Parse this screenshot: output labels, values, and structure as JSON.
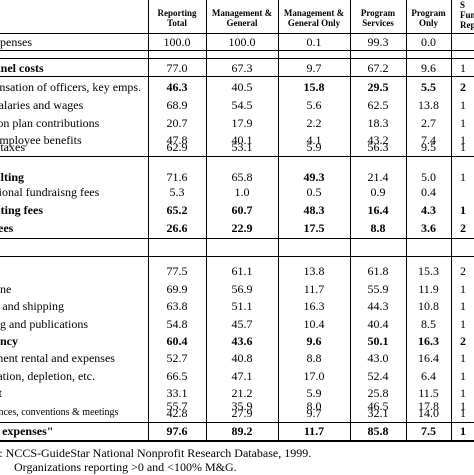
{
  "header": {
    "col1": [
      "Reporting",
      "Total"
    ],
    "col2": [
      "Management &",
      "General"
    ],
    "col3": [
      "Management &",
      "General Only"
    ],
    "col4": [
      "Program",
      "Services"
    ],
    "col5": [
      "Program",
      "Only"
    ],
    "col6": [
      "S",
      "Fun",
      "Rep"
    ]
  },
  "rows": [
    {
      "label": "xpenses",
      "v": [
        "100.0",
        "100.0",
        "0.1",
        "99.3",
        "0.0",
        ""
      ]
    },
    {
      "label": "nnel costs",
      "v": [
        "77.0",
        "67.3",
        "9.7",
        "67.2",
        "9.6",
        "1"
      ]
    },
    {
      "label": "ensation of officers, key emps.",
      "v": [
        "46.3",
        "40.5",
        "15.8",
        "29.5",
        "5.5",
        "2"
      ]
    },
    {
      "label": "salaries and wages",
      "v": [
        "68.9",
        "54.5",
        "5.6",
        "62.5",
        "13.8",
        "1"
      ]
    },
    {
      "label": "ion plan contributions",
      "v": [
        "20.7",
        "17.9",
        "2.2",
        "18.3",
        "2.7",
        "1"
      ]
    },
    {
      "label": "employee benefits",
      "v": [
        "47.8",
        "40.1",
        "4.1",
        "43.2",
        "7.4",
        "1"
      ]
    },
    {
      "label": "l taxes",
      "v": [
        "62.9",
        "53.1",
        "5.9",
        "56.3",
        "9.5",
        "1"
      ]
    },
    {
      "label": "ulting",
      "v": [
        "71.6",
        "65.8",
        "49.3",
        "21.4",
        "5.0",
        "1"
      ]
    },
    {
      "label": "sional fundraisng fees",
      "v": [
        "5.3",
        "1.0",
        "0.5",
        "0.9",
        "0.4",
        ""
      ]
    },
    {
      "label": "nting fees",
      "v": [
        "65.2",
        "60.7",
        "48.3",
        "16.4",
        "4.3",
        "1"
      ]
    },
    {
      "label": "fees",
      "v": [
        "26.6",
        "22.9",
        "17.5",
        "8.8",
        "3.6",
        "2"
      ]
    },
    {
      "label": "s",
      "v": [
        "77.5",
        "61.1",
        "13.8",
        "61.8",
        "15.3",
        "2"
      ]
    },
    {
      "label": "one",
      "v": [
        "69.9",
        "56.9",
        "11.7",
        "55.9",
        "11.9",
        "1"
      ]
    },
    {
      "label": "e and shipping",
      "v": [
        "63.8",
        "51.1",
        "16.3",
        "44.3",
        "10.8",
        "1"
      ]
    },
    {
      "label": "ng and publications",
      "v": [
        "54.8",
        "45.7",
        "10.4",
        "40.4",
        "8.5",
        "1"
      ]
    },
    {
      "label": "ancy",
      "v": [
        "60.4",
        "43.6",
        "9.6",
        "50.1",
        "16.3",
        "2"
      ]
    },
    {
      "label": "ment rental and expenses",
      "v": [
        "52.7",
        "40.8",
        "8.8",
        "43.0",
        "16.4",
        "1"
      ]
    },
    {
      "label": "iation, depletion, etc.",
      "v": [
        "66.5",
        "47.1",
        "17.0",
        "52.4",
        "6.4",
        "1"
      ]
    },
    {
      "label": "st",
      "v": [
        "33.1",
        "21.2",
        "5.9",
        "25.8",
        "11.5",
        "1"
      ]
    },
    {
      "label": "",
      "v": [
        "55.7",
        "35.9",
        "8.0",
        "46.5",
        "17.8",
        "1"
      ]
    },
    {
      "label": "ences, conventions & meetings",
      "v": [
        "42.8",
        "27.9",
        "9.7",
        "32.1",
        "14.0",
        "1"
      ]
    },
    {
      "label": "r expenses\"",
      "v": [
        "97.6",
        "89.2",
        "11.7",
        "85.8",
        "7.5",
        "1"
      ]
    }
  ],
  "footnotes": {
    "line1": "e: NCCS-GuideStar National Nonprofit Research Database, 1999.",
    "line2": "Organizations reporting >0 and <100% M&G."
  }
}
